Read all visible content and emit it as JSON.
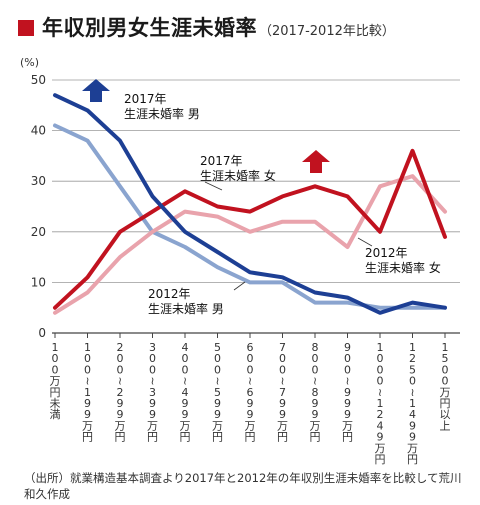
{
  "title": "年収別男女生涯未婚率",
  "subtitle": "（2017-2012年比較）",
  "source": "（出所）就業構造基本調査より2017年と2012年の年収別生涯未婚率を比較して荒川和久作成",
  "chart_data": {
    "type": "line",
    "ylabel": "(%)",
    "ylim": [
      0,
      50
    ],
    "yticks": [
      0,
      10,
      20,
      30,
      40,
      50
    ],
    "grid": true,
    "categories": [
      "100万円未満",
      "100〜199万円",
      "200〜299万円",
      "300〜399万円",
      "400〜499万円",
      "500〜599万円",
      "600〜699万円",
      "700〜799万円",
      "800〜899万円",
      "900〜999万円",
      "1000〜1249万円",
      "1250〜1499万円",
      "1500万円以上"
    ],
    "series": [
      {
        "name": "2017年 生涯未婚率 男",
        "label_line1": "2017年",
        "label_line2": "生涯未婚率 男",
        "color": "#1d3f94",
        "values": [
          47,
          44,
          38,
          27,
          20,
          16,
          12,
          11,
          8,
          7,
          4,
          6,
          5
        ]
      },
      {
        "name": "2012年 生涯未婚率 男",
        "label_line1": "2012年",
        "label_line2": "生涯未婚率 男",
        "color": "#8aa4cf",
        "values": [
          41,
          38,
          29,
          20,
          17,
          13,
          10,
          10,
          6,
          6,
          5,
          5,
          5
        ]
      },
      {
        "name": "2017年 生涯未婚率 女",
        "label_line1": "2017年",
        "label_line2": "生涯未婚率 女",
        "color": "#c1121f",
        "values": [
          5,
          11,
          20,
          24,
          28,
          25,
          24,
          27,
          29,
          27,
          20,
          36,
          19
        ]
      },
      {
        "name": "2012年 生涯未婚率 女",
        "label_line1": "2012年",
        "label_line2": "生涯未婚率 女",
        "color": "#e9a3ac",
        "values": [
          4,
          8,
          15,
          20,
          24,
          23,
          20,
          22,
          22,
          17,
          29,
          31,
          24
        ]
      }
    ],
    "annotations": [
      {
        "type": "arrow-up",
        "color": "#1d3f94",
        "series": "2017年 生涯未婚率 男"
      },
      {
        "type": "arrow-up",
        "color": "#c1121f",
        "series": "2017年 生涯未婚率 女"
      }
    ]
  }
}
